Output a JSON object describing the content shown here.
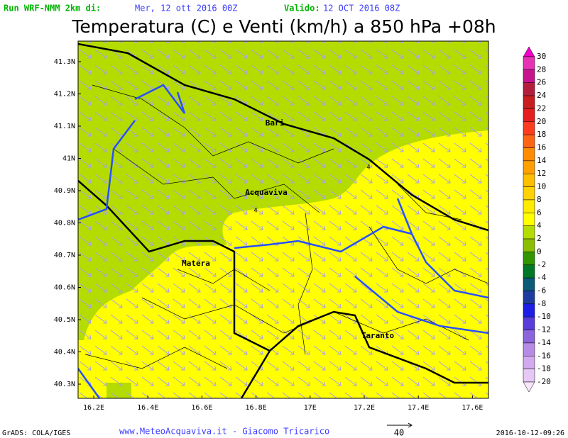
{
  "header": {
    "run_label": "Run WRF-NMM 2km di:",
    "run_date": "Mer, 12 ott 2016 00Z",
    "valid_label": "Valido:",
    "valid_date": "12 OCT 2016 08Z"
  },
  "title": "Temperatura (C) e Venti (km/h) a 850 hPa +08h",
  "map": {
    "lat_labels": [
      "41.3N",
      "41.2N",
      "41.1N",
      "41N",
      "40.9N",
      "40.8N",
      "40.7N",
      "40.6N",
      "40.5N",
      "40.4N",
      "40.3N"
    ],
    "lon_labels": [
      "16.2E",
      "16.4E",
      "16.6E",
      "16.8E",
      "17E",
      "17.2E",
      "17.4E",
      "17.6E"
    ],
    "cities": [
      "Bari",
      "Acquaviva",
      "Matera",
      "Taranto"
    ],
    "contour_labels": [
      "4",
      "4"
    ]
  },
  "colorbar": {
    "labels": [
      30,
      28,
      26,
      24,
      22,
      20,
      18,
      16,
      14,
      12,
      10,
      8,
      6,
      4,
      2,
      0,
      -2,
      -4,
      -6,
      -8,
      -10,
      -12,
      -14,
      -16,
      -18,
      -20
    ],
    "colors": [
      "#f000c8",
      "#e632b4",
      "#c8148c",
      "#b41e3c",
      "#c81e1e",
      "#e61e1e",
      "#ff3c1e",
      "#ff6414",
      "#ff8c00",
      "#ffa000",
      "#ffbe00",
      "#ffd200",
      "#ffeb00",
      "#ffff00",
      "#b4dc00",
      "#8cbe00",
      "#329600",
      "#007828",
      "#0a5a78",
      "#1e3ca0",
      "#1e1ee6",
      "#5a3cdc",
      "#8c64dc",
      "#b48ce6",
      "#d2aaf0",
      "#e6c8f5",
      "#fae6fa"
    ]
  },
  "footer": {
    "grads": "GrADS: COLA/IGES",
    "credit": "www.MeteoAcquaviva.it - Giacomo Tricarico",
    "wind_ref": "40",
    "timestamp": "2016-10-12-09:26"
  }
}
